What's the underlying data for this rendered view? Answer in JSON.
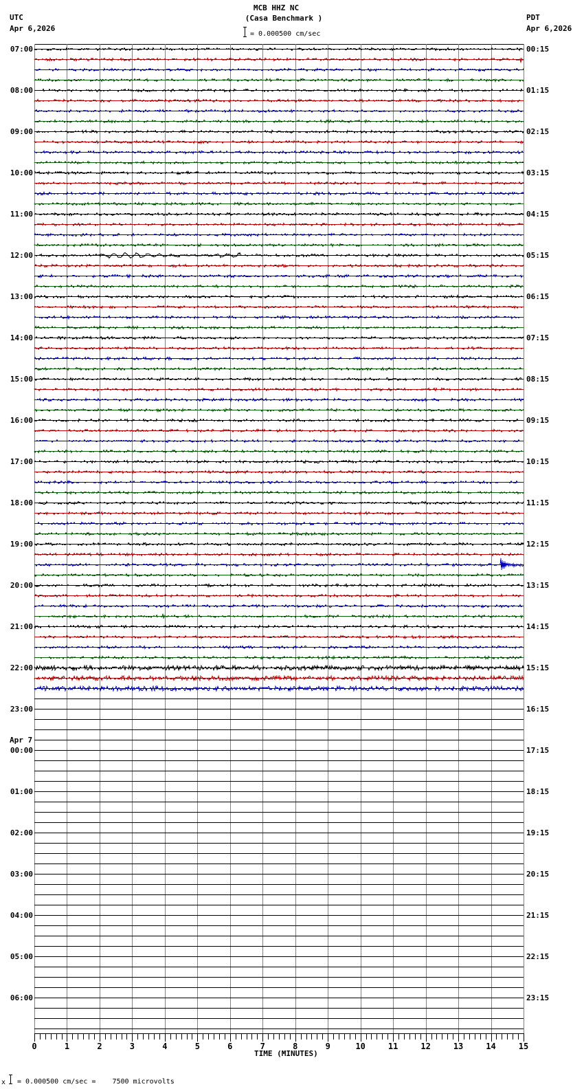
{
  "header": {
    "station": "MCB HHZ NC",
    "site": "(Casa Benchmark )",
    "scale_text": "= 0.000500 cm/sec",
    "scale_icon": "scale-bar-icon",
    "left_tz": "UTC",
    "left_date": "Apr 6,2026",
    "right_tz": "PDT",
    "right_date": "Apr 6,2026"
  },
  "footer": {
    "marker": "x",
    "scale_icon": "scale-bar-icon",
    "text": "= 0.000500 cm/sec =    7500 microvolts"
  },
  "chart_data": {
    "type": "line",
    "subtype": "helicorder (seismogram drum plot)",
    "title": "MCB HHZ NC (Casa Benchmark )",
    "xlabel": "TIME (MINUTES)",
    "ylabel_left": "UTC",
    "ylabel_right": "PDT",
    "xlim": [
      0,
      15
    ],
    "x_ticks": [
      "0",
      "1",
      "2",
      "3",
      "4",
      "5",
      "6",
      "7",
      "8",
      "9",
      "10",
      "11",
      "12",
      "13",
      "14",
      "15"
    ],
    "minor_tick_seconds": 10,
    "grid": true,
    "minutes_per_row": 15,
    "rows_total": 96,
    "rows_with_data": 63,
    "trace_colors": [
      "#000000",
      "#d00000",
      "#0000cc",
      "#006600"
    ],
    "grid_color": "#808080",
    "left_labels": [
      "07:00",
      "08:00",
      "09:00",
      "10:00",
      "11:00",
      "12:00",
      "13:00",
      "14:00",
      "15:00",
      "16:00",
      "17:00",
      "18:00",
      "19:00",
      "20:00",
      "21:00",
      "22:00",
      "23:00",
      "00:00",
      "01:00",
      "02:00",
      "03:00",
      "04:00",
      "05:00",
      "06:00"
    ],
    "right_labels": [
      "00:15",
      "01:15",
      "02:15",
      "03:15",
      "04:15",
      "05:15",
      "06:15",
      "07:15",
      "08:15",
      "09:15",
      "10:15",
      "11:15",
      "12:15",
      "13:15",
      "14:15",
      "15:15",
      "16:15",
      "17:15",
      "18:15",
      "19:15",
      "20:15",
      "21:15",
      "22:15",
      "23:15"
    ],
    "date_change": {
      "row": 68,
      "text": "Apr 7"
    },
    "high_noise_rows": [
      60,
      61,
      62
    ],
    "events": [
      {
        "row": 1,
        "utc": "07:15",
        "minute": 14.92,
        "amplitude_rel": 5,
        "duration_min": 0.06,
        "type": "spike"
      },
      {
        "row": 20,
        "utc": "12:00",
        "minute": 2.0,
        "amplitude_rel": 3,
        "duration_min": 4.3,
        "type": "long-period"
      },
      {
        "row": 50,
        "utc": "19:30",
        "minute": 14.3,
        "amplitude_rel": 9,
        "duration_min": 0.45,
        "type": "local-event"
      },
      {
        "row": 55,
        "utc": "20:45",
        "minute": 3.93,
        "amplitude_rel": 5,
        "duration_min": 0.12,
        "type": "spike"
      }
    ]
  }
}
